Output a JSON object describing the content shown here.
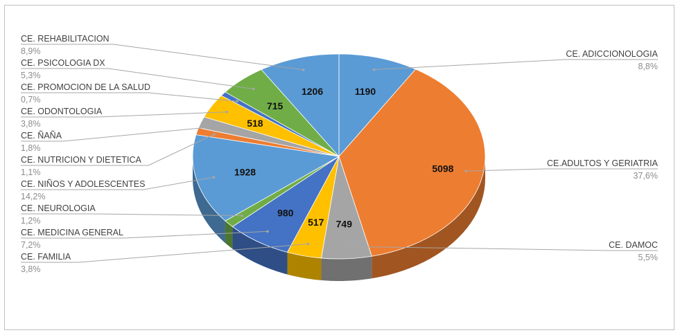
{
  "chart_data": {
    "type": "pie",
    "style": "3d-exploded-tilt",
    "slices": [
      {
        "name": "CE. ADICCIONOLOGIA",
        "value": 1190,
        "percent": "8,8%",
        "color": "#5b9bd5"
      },
      {
        "name": "CE.ADULTOS Y GERIATRIA",
        "value": 5098,
        "percent": "37,6%",
        "color": "#ed7d31"
      },
      {
        "name": "CE. DAMOC",
        "value": 749,
        "percent": "5,5%",
        "color": "#a5a5a5"
      },
      {
        "name": "CE. FAMILIA",
        "value": 517,
        "percent": "3,8%",
        "color": "#ffc000"
      },
      {
        "name": "CE. MEDICINA GENERAL",
        "value": 980,
        "percent": "7,2%",
        "color": "#4472c4"
      },
      {
        "name": "CE. NEUROLOGIA",
        "value": 163,
        "percent": "1,2%",
        "color": "#70ad47"
      },
      {
        "name": "CE. NIÑOS Y ADOLESCENTES",
        "value": 1928,
        "percent": "14,2%",
        "color": "#5b9bd5"
      },
      {
        "name": "CE. NUTRICION Y DIETETICA",
        "value": 149,
        "percent": "1,1%",
        "color": "#ed7d31"
      },
      {
        "name": "CE. ÑAÑA",
        "value": 244,
        "percent": "1,8%",
        "color": "#a5a5a5"
      },
      {
        "name": "CE. ODONTOLOGIA",
        "value": 518,
        "percent": "3,8%",
        "color": "#ffc000"
      },
      {
        "name": "CE. PROMOCION DE LA SALUD",
        "value": 95,
        "percent": "0,7%",
        "color": "#4472c4"
      },
      {
        "name": "CE. PSICOLOGIA DX",
        "value": 715,
        "percent": "5,3%",
        "color": "#70ad47"
      },
      {
        "name": "CE. REHABILITACION",
        "value": 1206,
        "percent": "8,9%",
        "color": "#5b9bd5"
      }
    ],
    "show_value_labels": [
      true,
      true,
      true,
      true,
      true,
      false,
      true,
      false,
      false,
      true,
      false,
      true,
      true
    ],
    "label_side": [
      "right",
      "right",
      "right",
      "left",
      "left",
      "left",
      "left",
      "left",
      "left",
      "left",
      "left",
      "left",
      "left"
    ],
    "start_angle": "12 o'clock, clockwise"
  }
}
